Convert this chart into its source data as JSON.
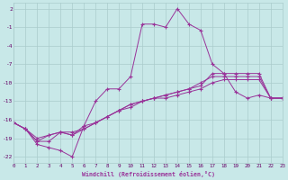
{
  "xlabel": "Windchill (Refroidissement éolien,°C)",
  "background_color": "#c8e8e8",
  "line_color": "#993399",
  "grid_color": "#aacccc",
  "xlim": [
    0,
    23
  ],
  "ylim": [
    -23,
    3
  ],
  "xticks": [
    0,
    1,
    2,
    3,
    4,
    5,
    6,
    7,
    8,
    9,
    10,
    11,
    12,
    13,
    14,
    15,
    16,
    17,
    18,
    19,
    20,
    21,
    22,
    23
  ],
  "yticks": [
    2,
    -1,
    -4,
    -7,
    -10,
    -13,
    -16,
    -19,
    -22
  ],
  "x": [
    0,
    1,
    2,
    3,
    4,
    5,
    6,
    7,
    8,
    9,
    10,
    11,
    12,
    13,
    14,
    15,
    16,
    17,
    18,
    19,
    20,
    21,
    22,
    23
  ],
  "series1": [
    -16.5,
    -17.5,
    -20,
    -20.5,
    -21,
    -22,
    -17,
    -13,
    -11,
    -11,
    -9,
    -0.5,
    -0.5,
    -1,
    2,
    -0.5,
    -1.5,
    -7,
    -8.5,
    -11.5,
    -12.5,
    -12,
    -12.5,
    -12.5
  ],
  "series2": [
    -16.5,
    -17.5,
    -19.5,
    -19.5,
    -18,
    -18.5,
    -17,
    -16.5,
    -15.5,
    -14.5,
    -14,
    -13,
    -12.5,
    -12,
    -11.5,
    -11,
    -10.5,
    -8.5,
    -8.5,
    -8.5,
    -8.5,
    -8.5,
    -12.5,
    -12.5
  ],
  "series3": [
    -16.5,
    -17.5,
    -19.5,
    -18.5,
    -18,
    -18.5,
    -17.5,
    -16.5,
    -15.5,
    -14.5,
    -13.5,
    -13,
    -12.5,
    -12,
    -11.5,
    -11,
    -10,
    -9,
    -9,
    -9,
    -9,
    -9,
    -12.5,
    -12.5
  ],
  "series4": [
    -16.5,
    -17.5,
    -19,
    -18.5,
    -18,
    -18,
    -17.5,
    -16.5,
    -15.5,
    -14.5,
    -13.5,
    -13,
    -12.5,
    -12.5,
    -12,
    -11.5,
    -11,
    -10,
    -9.5,
    -9.5,
    -9.5,
    -9.5,
    -12.5,
    -12.5
  ]
}
